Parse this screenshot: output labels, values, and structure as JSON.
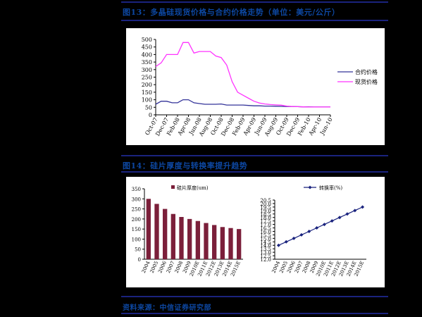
{
  "captions": {
    "fig1": "图13：多晶硅现货价格与合约价格走势（单位：美元/公斤）",
    "fig2": "图14：硅片厚度与转换率提升趋势",
    "source": "资料来源：中信证券研究部"
  },
  "chart_data": [
    {
      "type": "line",
      "title": "",
      "xlabel": "",
      "ylabel": "",
      "ylim": [
        0,
        500
      ],
      "yticks": [
        "0",
        "50",
        "100",
        "150",
        "200",
        "250",
        "300",
        "350",
        "400",
        "450",
        "500"
      ],
      "x_tick_labels": [
        "Oct-07",
        "Dec-07",
        "Feb-08",
        "Apr-08",
        "Jun-08",
        "Aug-08",
        "Oct-08",
        "Dec-08",
        "Feb-09",
        "Apr-09",
        "Jun-09",
        "Aug-09",
        "Oct-09",
        "Dec-09",
        "Feb-10",
        "Apr-10",
        "Jun-10"
      ],
      "x_range": [
        0,
        32
      ],
      "legend_position": "right",
      "series": [
        {
          "name": "合约价格",
          "color": "#333399",
          "x": [
            0,
            1,
            2,
            3,
            4,
            5,
            6,
            7,
            8,
            9,
            10,
            11,
            12,
            13,
            14,
            15,
            16,
            17,
            18,
            19,
            20,
            21,
            22,
            23,
            24,
            25,
            26,
            27,
            28,
            29,
            30,
            31,
            32
          ],
          "values": [
            70,
            90,
            90,
            80,
            80,
            100,
            100,
            80,
            75,
            70,
            70,
            70,
            72,
            65,
            65,
            65,
            65,
            62,
            60,
            60,
            58,
            58,
            57,
            56,
            55,
            55,
            54,
            53,
            53,
            52,
            52,
            52,
            52
          ]
        },
        {
          "name": "现货价格",
          "color": "#ff33ff",
          "x": [
            0,
            1,
            2,
            3,
            4,
            5,
            6,
            7,
            8,
            9,
            10,
            11,
            12,
            13,
            14,
            15,
            16,
            17,
            18,
            19,
            20,
            21,
            22,
            23,
            24,
            25,
            26,
            27,
            28,
            29,
            30,
            31,
            32
          ],
          "values": [
            320,
            345,
            400,
            400,
            400,
            480,
            480,
            410,
            420,
            420,
            420,
            390,
            380,
            330,
            220,
            150,
            130,
            110,
            90,
            78,
            72,
            68,
            66,
            64,
            58,
            55,
            54,
            53,
            52,
            52,
            52,
            52,
            52
          ]
        }
      ]
    },
    {
      "type": "bar",
      "categories": [
        "2004",
        "2005",
        "2006",
        "2007",
        "2008",
        "2009",
        "2010E",
        "2011E",
        "2012E",
        "2013E",
        "2014E",
        "2015E"
      ],
      "values": [
        300,
        275,
        250,
        225,
        210,
        200,
        190,
        180,
        170,
        160,
        155,
        150
      ],
      "ylim": [
        0,
        350
      ],
      "yticks": [
        "0",
        "50",
        "100",
        "150",
        "200",
        "250",
        "300",
        "350"
      ],
      "legend": "硅片厚度(um)",
      "color": "#7b1f3a"
    },
    {
      "type": "line",
      "categories": [
        "2004",
        "2005",
        "2006",
        "2007",
        "2008",
        "2009",
        "2010E",
        "2011E",
        "2012E",
        "2013E",
        "2014E",
        "2015E"
      ],
      "values": [
        14.0,
        14.5,
        15.0,
        15.5,
        16.0,
        16.5,
        17.0,
        17.5,
        18.0,
        18.5,
        19.0,
        19.5
      ],
      "ylim": [
        12.0,
        20.5
      ],
      "yticks": [
        "12.0",
        "12.5",
        "13.0",
        "13.5",
        "14.0",
        "14.5",
        "15.0",
        "15.5",
        "16.0",
        "16.5",
        "17.0",
        "17.5",
        "18.0",
        "18.5",
        "19.0",
        "19.5",
        "20.0",
        "20.5"
      ],
      "legend": "转换率(%)",
      "color": "#1a237e"
    }
  ]
}
